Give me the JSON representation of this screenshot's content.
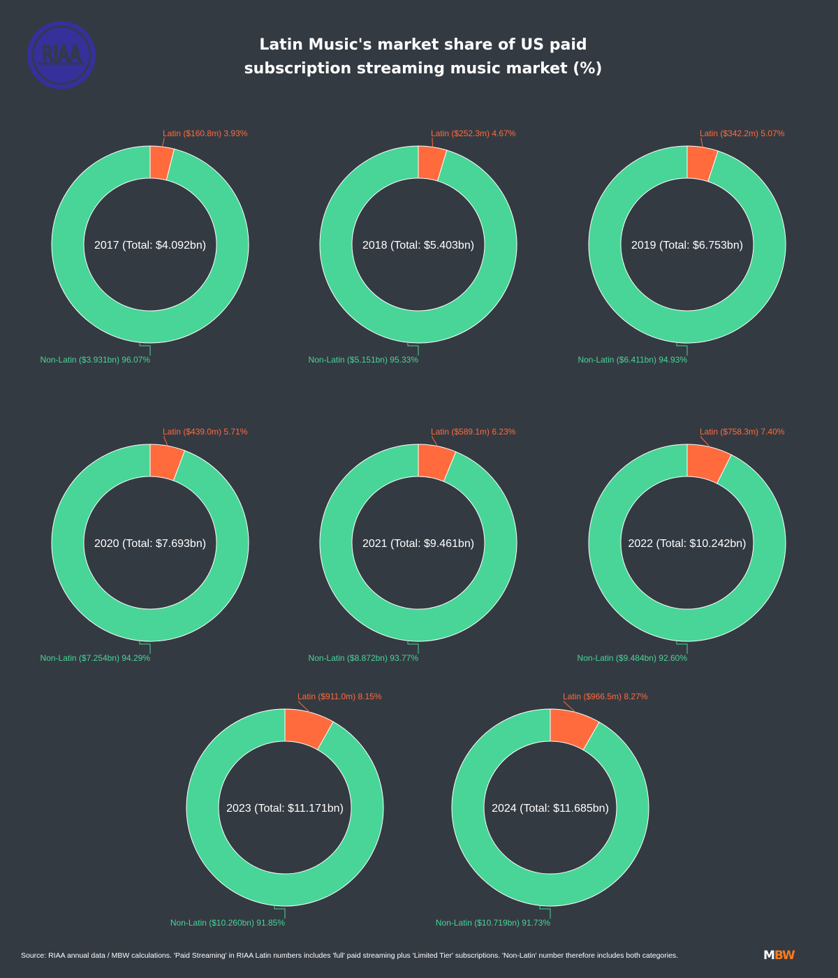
{
  "title_lines": [
    "Latin Music's market share of US paid",
    "subscription streaming music market (%)"
  ],
  "logo_text": "RIAA",
  "source": "Source: RIAA annual data / MBW calculations. 'Paid Streaming' in RIAA Latin numbers includes 'full' paid streaming plus 'Limited Tier' subscriptions. 'Non-Latin' number therefore includes both categories.",
  "brand": {
    "m": "M",
    "bw": "BW"
  },
  "colors": {
    "latin": "#ff6b3d",
    "non_latin": "#48d597",
    "background": "#343a42"
  },
  "chart_data": {
    "type": "pie",
    "title": "Latin Music's market share of US paid subscription streaming music market (%)",
    "charts": [
      {
        "center_label": "2017 (Total: $4.092bn)",
        "slices": [
          {
            "name": "Latin",
            "value": 3.93,
            "label": "Latin ($160.8m) 3.93%"
          },
          {
            "name": "Non-Latin",
            "value": 96.07,
            "label": "Non-Latin ($3.931bn) 96.07%"
          }
        ]
      },
      {
        "center_label": "2018 (Total: $5.403bn)",
        "slices": [
          {
            "name": "Latin",
            "value": 4.67,
            "label": "Latin ($252.3m) 4.67%"
          },
          {
            "name": "Non-Latin",
            "value": 95.33,
            "label": "Non-Latin ($5.151bn) 95.33%"
          }
        ]
      },
      {
        "center_label": "2019 (Total: $6.753bn)",
        "slices": [
          {
            "name": "Latin",
            "value": 5.07,
            "label": "Latin ($342.2m) 5.07%"
          },
          {
            "name": "Non-Latin",
            "value": 94.93,
            "label": "Non-Latin ($6.411bn) 94.93%"
          }
        ]
      },
      {
        "center_label": "2020 (Total: $7.693bn)",
        "slices": [
          {
            "name": "Latin",
            "value": 5.71,
            "label": "Latin ($439.0m) 5.71%"
          },
          {
            "name": "Non-Latin",
            "value": 94.29,
            "label": "Non-Latin ($7.254bn) 94.29%"
          }
        ]
      },
      {
        "center_label": "2021 (Total: $9.461bn)",
        "slices": [
          {
            "name": "Latin",
            "value": 6.23,
            "label": "Latin ($589.1m) 6.23%"
          },
          {
            "name": "Non-Latin",
            "value": 93.77,
            "label": "Non-Latin ($8.872bn) 93.77%"
          }
        ]
      },
      {
        "center_label": "2022 (Total: $10.242bn)",
        "slices": [
          {
            "name": "Latin",
            "value": 7.4,
            "label": "Latin ($758.3m) 7.40%"
          },
          {
            "name": "Non-Latin",
            "value": 92.6,
            "label": "Non-Latin ($9.484bn) 92.60%"
          }
        ]
      },
      {
        "center_label": "2023 (Total: $11.171bn)",
        "slices": [
          {
            "name": "Latin",
            "value": 8.15,
            "label": "Latin ($911.0m) 8.15%"
          },
          {
            "name": "Non-Latin",
            "value": 91.85,
            "label": "Non-Latin ($10.260bn) 91.85%"
          }
        ]
      },
      {
        "center_label": "2024 (Total: $11.685bn)",
        "slices": [
          {
            "name": "Latin",
            "value": 8.27,
            "label": "Latin ($966.5m) 8.27%"
          },
          {
            "name": "Non-Latin",
            "value": 91.73,
            "label": "Non-Latin ($10.719bn) 91.73%"
          }
        ]
      }
    ]
  }
}
